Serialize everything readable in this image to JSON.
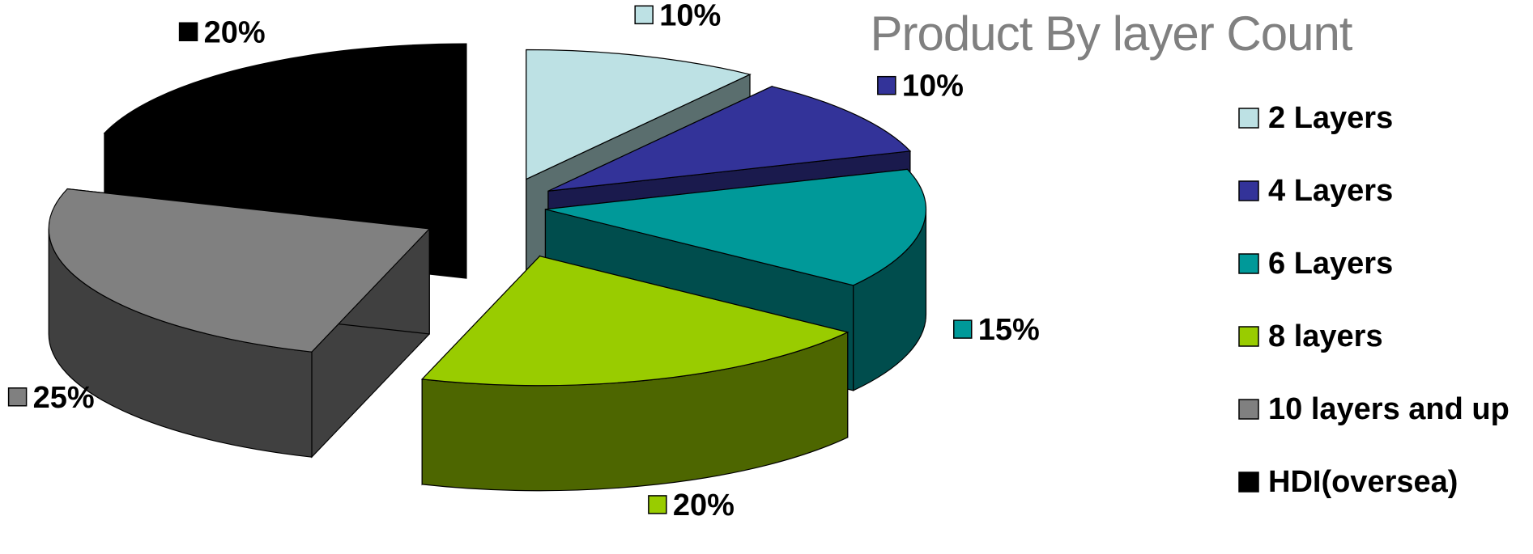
{
  "chart_data": {
    "type": "pie",
    "title": "Product By layer Count",
    "categories": [
      "2 Layers",
      "4 Layers",
      "6 Layers",
      "8 layers",
      "10 layers and up",
      "HDI(oversea)"
    ],
    "values": [
      10,
      10,
      15,
      20,
      25,
      20
    ],
    "value_labels": [
      "10%",
      "10%",
      "15%",
      "20%",
      "25%",
      "20%"
    ],
    "colors": [
      "#BDE1E4",
      "#333399",
      "#009999",
      "#99CC00",
      "#808080",
      "#000000"
    ],
    "side_colors": [
      "#5A6E6E",
      "#1A1A4D",
      "#004D4D",
      "#4D6600",
      "#404040",
      "#000000"
    ],
    "legend_position": "right",
    "style": "3d-exploded"
  }
}
